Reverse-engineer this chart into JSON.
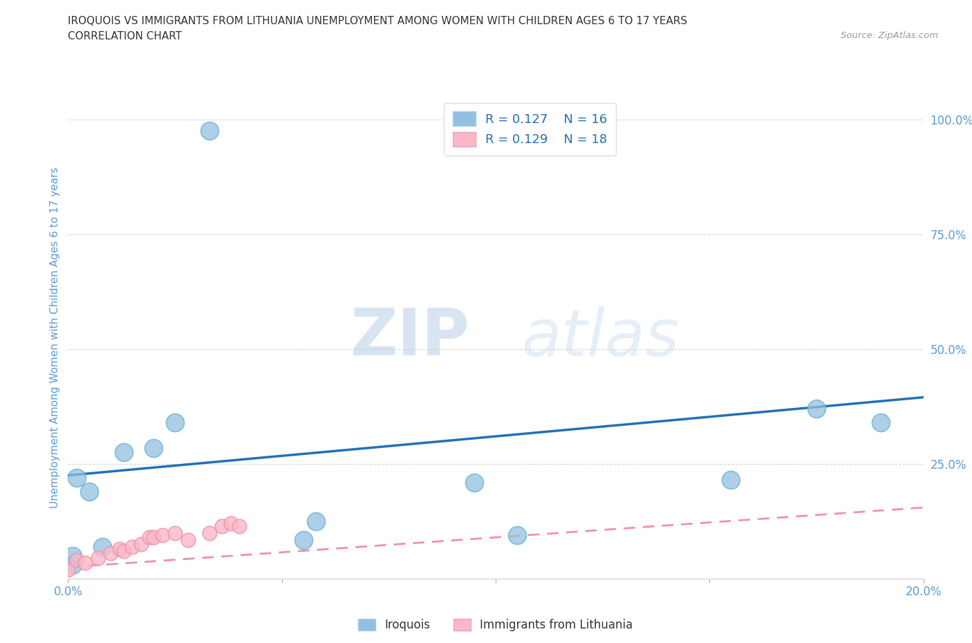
{
  "title_line1": "IROQUOIS VS IMMIGRANTS FROM LITHUANIA UNEMPLOYMENT AMONG WOMEN WITH CHILDREN AGES 6 TO 17 YEARS",
  "title_line2": "CORRELATION CHART",
  "source_text": "Source: ZipAtlas.com",
  "ylabel": "Unemployment Among Women with Children Ages 6 to 17 years",
  "watermark_zip": "ZIP",
  "watermark_atlas": "atlas",
  "xlim": [
    0.0,
    0.2
  ],
  "ylim": [
    0.0,
    1.05
  ],
  "xticks": [
    0.0,
    0.05,
    0.1,
    0.15,
    0.2
  ],
  "xticklabels": [
    "0.0%",
    "",
    "",
    "",
    "20.0%"
  ],
  "yticks_right": [
    0.25,
    0.5,
    0.75,
    1.0
  ],
  "yticklabels_right": [
    "25.0%",
    "50.0%",
    "75.0%",
    "100.0%"
  ],
  "iroquois_x": [
    0.001,
    0.001,
    0.002,
    0.005,
    0.008,
    0.013,
    0.02,
    0.025,
    0.033,
    0.055,
    0.058,
    0.095,
    0.105,
    0.155,
    0.175,
    0.19
  ],
  "iroquois_y": [
    0.03,
    0.05,
    0.22,
    0.19,
    0.07,
    0.275,
    0.285,
    0.34,
    0.975,
    0.085,
    0.125,
    0.21,
    0.095,
    0.215,
    0.37,
    0.34
  ],
  "lithuania_x": [
    0.0,
    0.002,
    0.004,
    0.007,
    0.01,
    0.012,
    0.013,
    0.015,
    0.017,
    0.019,
    0.02,
    0.022,
    0.025,
    0.028,
    0.033,
    0.036,
    0.038,
    0.04
  ],
  "lithuania_y": [
    0.02,
    0.04,
    0.035,
    0.045,
    0.055,
    0.065,
    0.06,
    0.07,
    0.075,
    0.09,
    0.09,
    0.095,
    0.1,
    0.085,
    0.1,
    0.115,
    0.12,
    0.115
  ],
  "iroquois_color": "#92c0e0",
  "iroquois_edge_color": "#6aaed6",
  "lithuania_color": "#f9b8c8",
  "lithuania_edge_color": "#f090a8",
  "iroquois_line_color": "#2171b5",
  "lithuania_line_color": "#f090a8",
  "R_iroquois": 0.127,
  "N_iroquois": 16,
  "R_lithuania": 0.129,
  "N_lithuania": 18,
  "legend_label_1": "Iroquois",
  "legend_label_2": "Immigrants from Lithuania",
  "grid_color": "#cccccc",
  "title_color": "#333333",
  "tick_color": "#5b9bd5",
  "irq_line_y0": 0.225,
  "irq_line_y1": 0.395,
  "lit_line_y0": 0.025,
  "lit_line_y1": 0.155
}
